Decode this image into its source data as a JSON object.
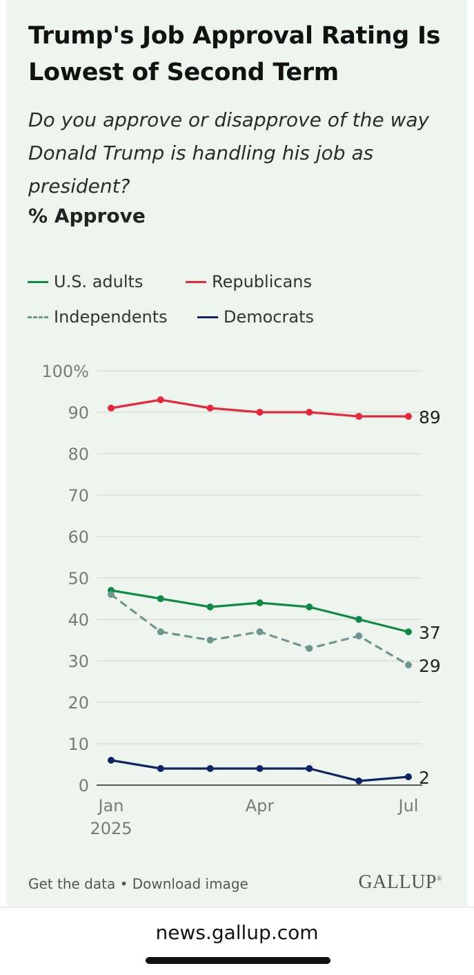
{
  "header": {
    "title": "Trump's Job Approval Rating Is Lowest of Second Term",
    "question": "Do you approve or disapprove of the way Donald Trump is handling his job as president?",
    "measure": "% Approve"
  },
  "legend": [
    {
      "label": "U.S. adults",
      "color": "#0f8a45",
      "style": "solid"
    },
    {
      "label": "Republicans",
      "color": "#e8283a",
      "style": "solid"
    },
    {
      "label": "Independents",
      "color": "#6f9590",
      "style": "dashed"
    },
    {
      "label": "Democrats",
      "color": "#0d2466",
      "style": "solid"
    }
  ],
  "chart_data": {
    "type": "line",
    "x": [
      "2025-01",
      "2025-02",
      "2025-03",
      "2025-04",
      "2025-05",
      "2025-06",
      "2025-07"
    ],
    "x_tick_labels": [
      {
        "x": "2025-01",
        "label": "Jan",
        "sublabel": "2025"
      },
      {
        "x": "2025-04",
        "label": "Apr",
        "sublabel": ""
      },
      {
        "x": "2025-07",
        "label": "Jul",
        "sublabel": ""
      }
    ],
    "y_ticks": [
      "100%",
      "90",
      "80",
      "70",
      "60",
      "50",
      "40",
      "30",
      "20",
      "10",
      "0"
    ],
    "ylim": [
      0,
      100
    ],
    "grid": true,
    "series": [
      {
        "name": "Republicans",
        "color": "#e8283a",
        "dashed": false,
        "values": [
          91,
          93,
          91,
          90,
          90,
          89,
          89
        ],
        "end_label": "89"
      },
      {
        "name": "U.S. adults",
        "color": "#0f8a45",
        "dashed": false,
        "values": [
          47,
          45,
          43,
          44,
          43,
          40,
          37
        ],
        "end_label": "37"
      },
      {
        "name": "Independents",
        "color": "#6f9590",
        "dashed": true,
        "values": [
          46,
          37,
          35,
          37,
          33,
          36,
          29
        ],
        "end_label": "29"
      },
      {
        "name": "Democrats",
        "color": "#0d2466",
        "dashed": false,
        "values": [
          6,
          4,
          4,
          4,
          4,
          1,
          2
        ],
        "end_label": "2"
      }
    ]
  },
  "footer": {
    "get_data": "Get the data",
    "separator": "•",
    "download": "Download image",
    "logo": "GALLUP",
    "logo_mark": "®"
  },
  "browser": {
    "url": "news.gallup.com"
  }
}
